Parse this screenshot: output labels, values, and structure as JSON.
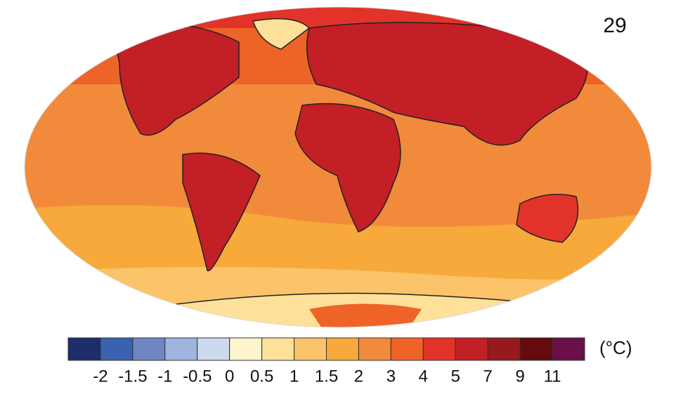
{
  "panel_label": "29",
  "colorbar": {
    "unit": "(°C)",
    "colors": [
      "#1f2d6b",
      "#3a62b0",
      "#6f86c3",
      "#9fb5dd",
      "#cdd9ee",
      "#fff5cc",
      "#fde09a",
      "#fbc36a",
      "#f7a93b",
      "#f28a3b",
      "#ee6327",
      "#e2332a",
      "#c21f27",
      "#96191e",
      "#650a0d",
      "#6a0f4a"
    ],
    "labels": [
      "-2",
      "-1.5",
      "-1",
      "-0.5",
      "0",
      "0.5",
      "1",
      "1.5",
      "2",
      "3",
      "4",
      "5",
      "7",
      "9",
      "11"
    ]
  }
}
